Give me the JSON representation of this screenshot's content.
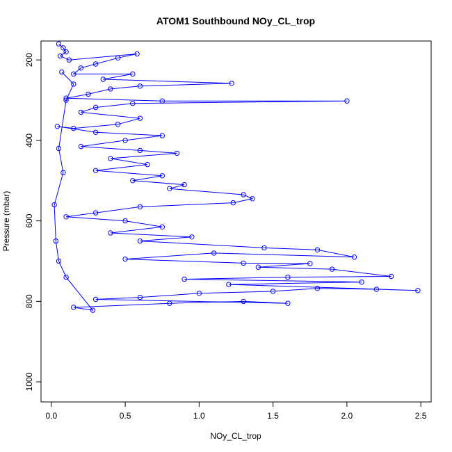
{
  "chart_data": {
    "type": "scatter",
    "title": "ATOM1 Southbound NOy_CL_trop",
    "xlabel": "NOy_CL_trop",
    "ylabel": "Pressure (mbar)",
    "xlim": [
      -0.07,
      2.57
    ],
    "ylim": [
      1050,
      153
    ],
    "y_axis_inverted": true,
    "x_ticks": [
      0.0,
      0.5,
      1.0,
      1.5,
      2.0,
      2.5
    ],
    "x_tick_labels": [
      "0.0",
      "0.5",
      "1.0",
      "1.5",
      "2.0",
      "2.5"
    ],
    "y_ticks": [
      200,
      400,
      600,
      800,
      1000
    ],
    "y_tick_labels": [
      "200",
      "400",
      "600",
      "800",
      "1000"
    ],
    "grid": false,
    "legend": "none",
    "marker": "open-circle",
    "connected_by_lines": true,
    "series_color": "#0000ff",
    "series": [
      {
        "points": [
          [
            0.05,
            160
          ],
          [
            0.08,
            170
          ],
          [
            0.1,
            180
          ],
          [
            0.06,
            190
          ],
          [
            0.12,
            200
          ],
          [
            0.58,
            185
          ],
          [
            0.45,
            195
          ],
          [
            0.3,
            210
          ],
          [
            0.2,
            220
          ],
          [
            0.15,
            235
          ],
          [
            0.55,
            235
          ],
          [
            0.35,
            248
          ],
          [
            1.22,
            258
          ],
          [
            0.6,
            265
          ],
          [
            0.4,
            272
          ],
          [
            0.25,
            285
          ],
          [
            0.1,
            295
          ],
          [
            0.75,
            302
          ],
          [
            2.0,
            302
          ],
          [
            0.55,
            308
          ],
          [
            0.3,
            318
          ],
          [
            0.2,
            330
          ],
          [
            0.6,
            345
          ],
          [
            0.45,
            360
          ],
          [
            0.15,
            370
          ],
          [
            0.04,
            365
          ],
          [
            0.3,
            380
          ],
          [
            0.75,
            388
          ],
          [
            0.5,
            400
          ],
          [
            0.2,
            415
          ],
          [
            0.6,
            425
          ],
          [
            0.85,
            432
          ],
          [
            0.4,
            445
          ],
          [
            0.65,
            460
          ],
          [
            0.3,
            475
          ],
          [
            0.75,
            488
          ],
          [
            0.55,
            500
          ],
          [
            0.9,
            510
          ],
          [
            0.8,
            520
          ],
          [
            1.3,
            535
          ],
          [
            1.36,
            545
          ],
          [
            1.23,
            555
          ],
          [
            0.6,
            565
          ],
          [
            0.3,
            580
          ],
          [
            0.1,
            590
          ],
          [
            0.5,
            600
          ],
          [
            0.75,
            615
          ],
          [
            0.4,
            630
          ],
          [
            0.95,
            640
          ],
          [
            0.6,
            650
          ],
          [
            1.44,
            667
          ],
          [
            1.8,
            672
          ],
          [
            2.05,
            690
          ],
          [
            1.1,
            680
          ],
          [
            0.5,
            695
          ],
          [
            1.3,
            705
          ],
          [
            1.75,
            706
          ],
          [
            1.4,
            715
          ],
          [
            1.9,
            720
          ],
          [
            2.3,
            738
          ],
          [
            1.6,
            740
          ],
          [
            0.9,
            745
          ],
          [
            2.1,
            752
          ],
          [
            1.2,
            758
          ],
          [
            2.48,
            773
          ],
          [
            2.2,
            770
          ],
          [
            1.8,
            768
          ],
          [
            1.5,
            775
          ],
          [
            1.0,
            780
          ],
          [
            0.6,
            790
          ],
          [
            0.3,
            795
          ],
          [
            1.6,
            805
          ],
          [
            1.3,
            800
          ],
          [
            0.8,
            805
          ],
          [
            0.15,
            815
          ],
          [
            0.28,
            822
          ],
          [
            0.1,
            740
          ],
          [
            0.05,
            700
          ],
          [
            0.03,
            650
          ],
          [
            0.02,
            560
          ],
          [
            0.08,
            480
          ],
          [
            0.05,
            420
          ],
          [
            0.1,
            300
          ],
          [
            0.15,
            260
          ],
          [
            0.07,
            230
          ]
        ]
      }
    ]
  }
}
